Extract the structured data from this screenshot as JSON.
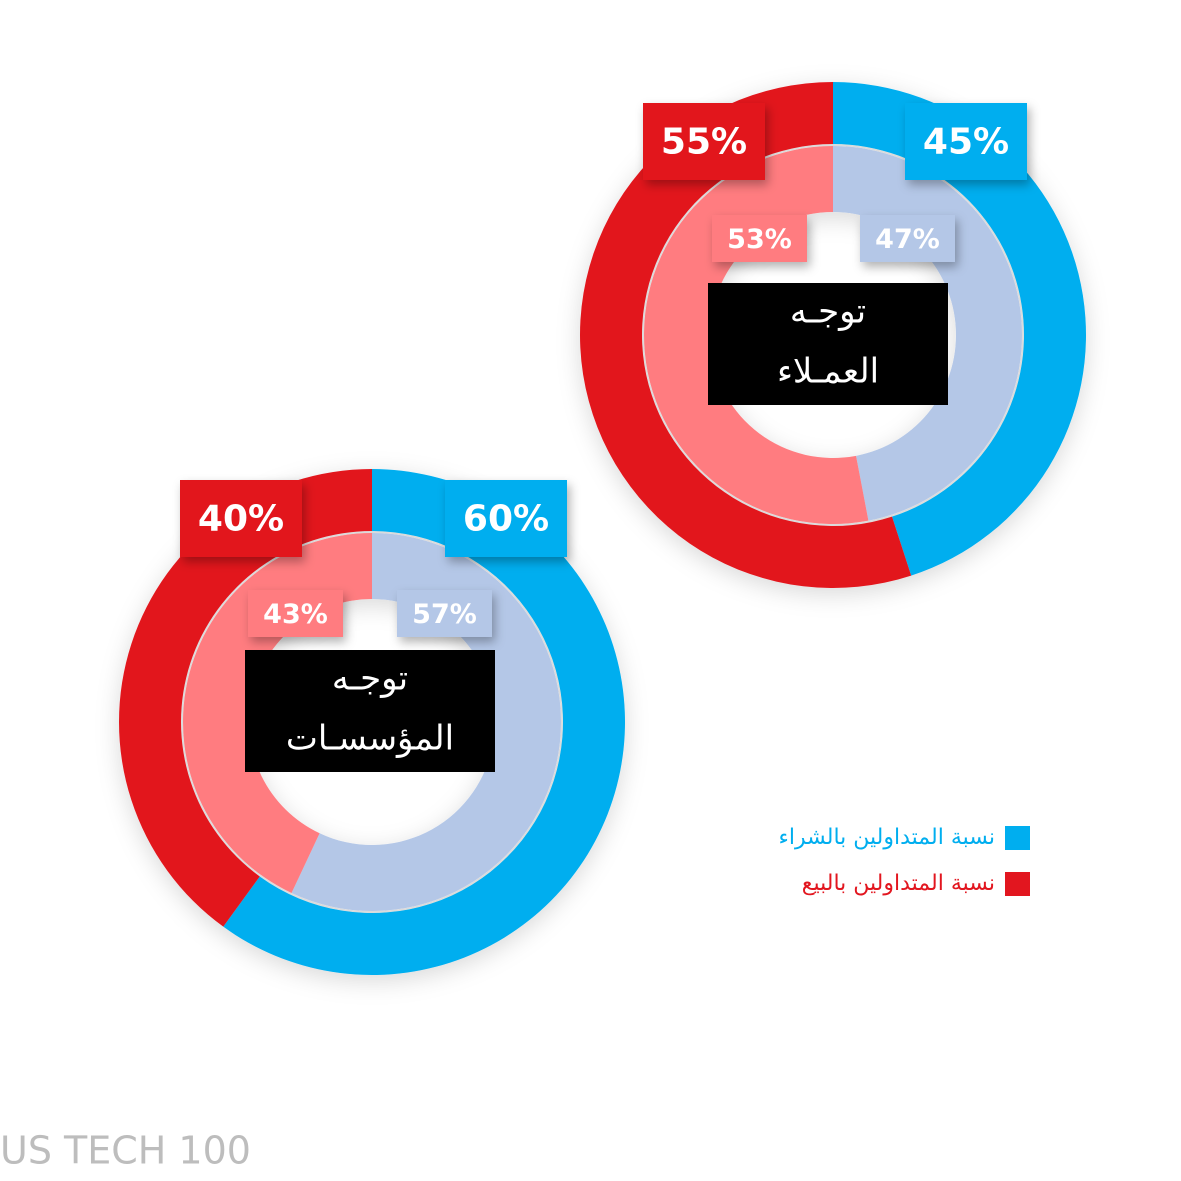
{
  "chart_data": [
    {
      "type": "donut",
      "title": [
        "توجـه",
        "العمـلاء"
      ],
      "rings": [
        {
          "values": [
            45,
            55
          ],
          "value_labels": [
            "45%",
            "55%"
          ],
          "colors": [
            "#00aeef",
            "#e2161f"
          ]
        },
        {
          "values": [
            47,
            53
          ],
          "value_labels": [
            "47%",
            "53%"
          ],
          "colors": [
            "#b4c7e7",
            "#ff7c80"
          ]
        }
      ]
    },
    {
      "type": "donut",
      "title": [
        "توجـه",
        "المؤسسـات"
      ],
      "rings": [
        {
          "values": [
            60,
            40
          ],
          "value_labels": [
            "60%",
            "40%"
          ],
          "colors": [
            "#00aeef",
            "#e2161f"
          ]
        },
        {
          "values": [
            57,
            43
          ],
          "value_labels": [
            "57%",
            "43%"
          ],
          "colors": [
            "#b4c7e7",
            "#ff7c80"
          ]
        }
      ]
    }
  ],
  "legend": {
    "position": "right",
    "entries": [
      {
        "name": "نسبة المتداولين بالشراء",
        "color": "#00aeef"
      },
      {
        "name": "نسبة المتداولين بالبيع",
        "color": "#e2161f"
      }
    ]
  },
  "footer": "US TECH 100"
}
